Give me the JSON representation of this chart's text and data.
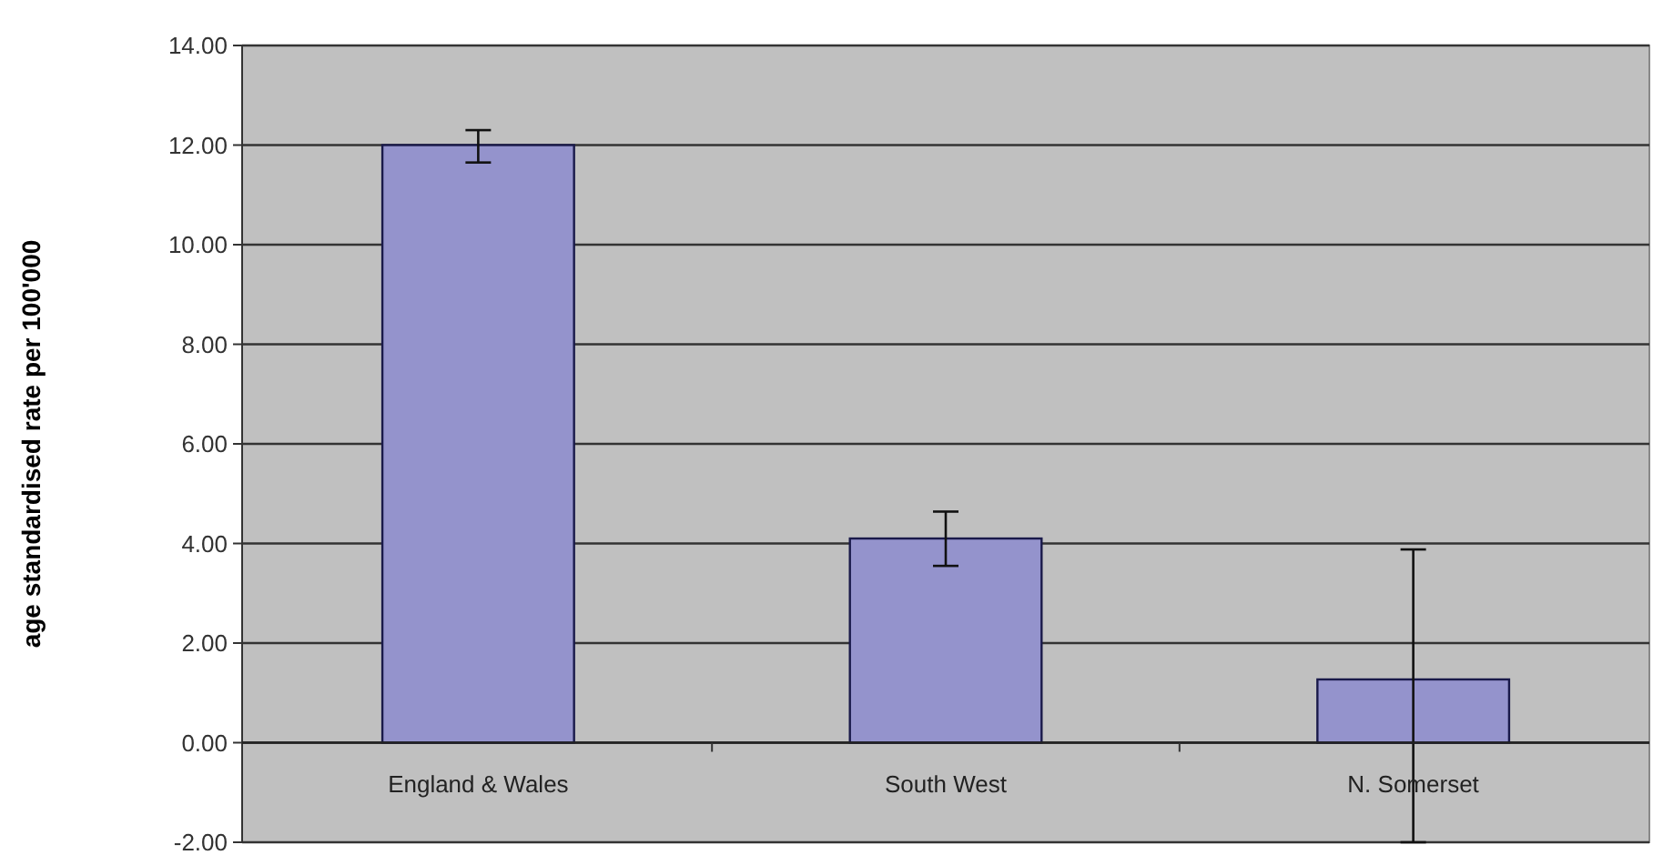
{
  "chart_data": {
    "type": "bar",
    "ylabel": "age standardised rate per 100'000",
    "categories": [
      "England & Wales",
      "South West",
      "N. Somerset"
    ],
    "values": [
      12.0,
      4.1,
      1.27
    ],
    "errors": [
      [
        11.65,
        12.3
      ],
      [
        3.55,
        4.64
      ],
      [
        -2.0,
        3.88
      ]
    ],
    "color": "#9493cc",
    "ylim": [
      -2,
      14
    ],
    "yticks": [
      {
        "value": -2,
        "label": "-2.00"
      },
      {
        "value": 0,
        "label": "0.00"
      },
      {
        "value": 2,
        "label": "2.00"
      },
      {
        "value": 4,
        "label": "4.00"
      },
      {
        "value": 6,
        "label": "6.00"
      },
      {
        "value": 8,
        "label": "8.00"
      },
      {
        "value": 10,
        "label": "10.00"
      },
      {
        "value": 12,
        "label": "12.00"
      },
      {
        "value": 14,
        "label": "14.00"
      }
    ],
    "grid": "y"
  }
}
